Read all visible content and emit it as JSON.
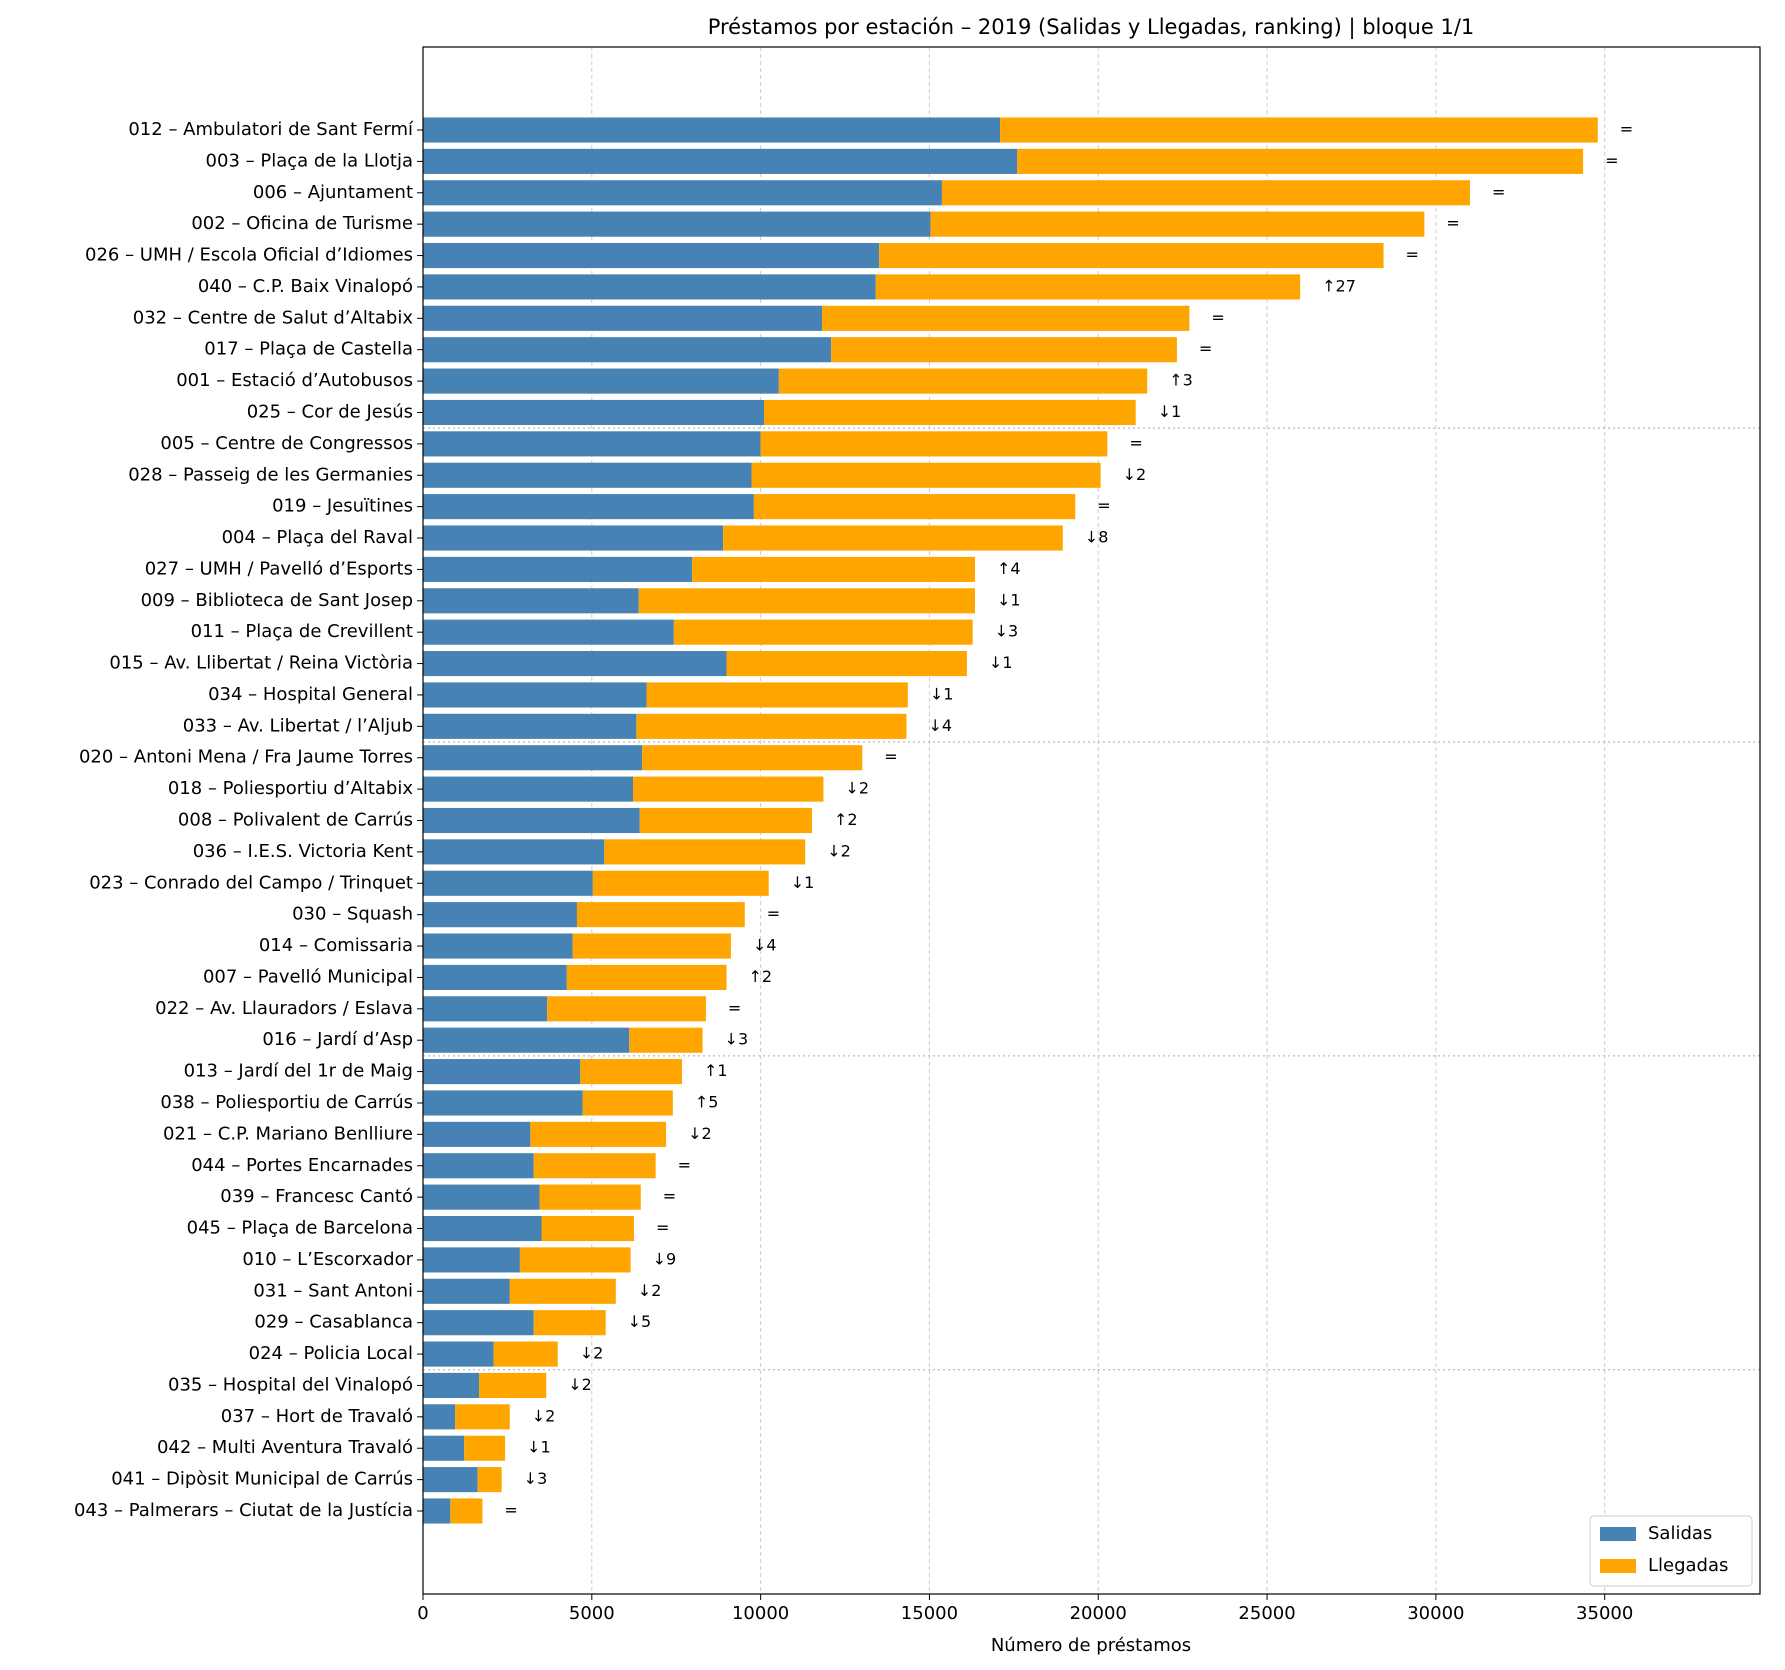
{
  "chart_data": {
    "type": "stacked_barh",
    "title": "Préstamos por estación – 2019 (Salidas y Llegadas, ranking)  |  bloque 1/1",
    "x_label": "Número de préstamos",
    "categories": [
      "012 – Ambulatori de Sant Fermí",
      "003 – Plaça de la Llotja",
      "006 – Ajuntament",
      "002 – Oficina de Turisme",
      "026 – UMH / Escola Oficial d’Idiomes",
      "040 – C.P. Baix Vinalopó",
      "032 – Centre de Salut d’Altabix",
      "017 – Plaça de Castella",
      "001 – Estació d’Autobusos",
      "025 – Cor de Jesús",
      "005 – Centre de Congressos",
      "028 – Passeig de les Germanies",
      "019 – Jesuïtines",
      "004 – Plaça del Raval",
      "027 – UMH / Pavelló d’Esports",
      "009 – Biblioteca de Sant Josep",
      "011 – Plaça de Crevillent",
      "015 – Av. Llibertat / Reina Victòria",
      "034 – Hospital General",
      "033 – Av. Libertat / l’Aljub",
      "020 – Antoni Mena / Fra Jaume Torres",
      "018 – Poliesportiu d’Altabix",
      "008 – Polivalent de Carrús",
      "036 – I.E.S. Victoria Kent",
      "023 – Conrado del Campo / Trinquet",
      "030 – Squash",
      "014 – Comissaria",
      "007 – Pavelló Municipal",
      "022 – Av. Llauradors / Eslava",
      "016 – Jardí d’Asp",
      "013 – Jardí del 1r de Maig",
      "038 – Poliesportiu de Carrús",
      "021 – C.P. Mariano Benlliure",
      "044 – Portes Encarnades",
      "039 – Francesc Cantó",
      "045 – Plaça de Barcelona",
      "010 – L’Escorxador",
      "031 – Sant Antoni",
      "029 – Casablanca",
      "024 – Policia Local",
      "035 – Hospital del Vinalopó",
      "037 – Hort de Travaló",
      "042 – Multi Aventura Travaló",
      "041 – Dipòsit Municipal de Carrús",
      "043 – Palmerars – Ciutat de la Justícia"
    ],
    "series": [
      {
        "name": "Salidas",
        "color": "#4682b4",
        "values": [
          17095,
          17600,
          15370,
          15030,
          13510,
          13410,
          11820,
          12090,
          10540,
          10100,
          10000,
          9730,
          9800,
          8890,
          7970,
          6390,
          7430,
          8990,
          6620,
          6320,
          6490,
          6220,
          6420,
          5370,
          5030,
          4560,
          4430,
          4260,
          3680,
          6110,
          4660,
          4730,
          3180,
          3280,
          3450,
          3510,
          2870,
          2570,
          3280,
          2090,
          1660,
          950,
          1220,
          1620,
          810
        ]
      },
      {
        "name": "Llegadas",
        "color": "#ffa500",
        "values": [
          17700,
          16760,
          15640,
          14630,
          14940,
          12570,
          10880,
          10240,
          10910,
          11010,
          10270,
          10340,
          9520,
          10060,
          8380,
          9960,
          8850,
          7120,
          7740,
          8000,
          6520,
          5640,
          5100,
          5950,
          5210,
          4970,
          4690,
          4730,
          4700,
          2170,
          3010,
          2670,
          4020,
          3610,
          3000,
          2740,
          3280,
          3140,
          2130,
          1900,
          1990,
          1620,
          1210,
          710,
          950
        ]
      }
    ],
    "rank_changes": [
      "=",
      "=",
      "=",
      "=",
      "=",
      "↑27",
      "=",
      "=",
      "↑3",
      "↓1",
      "=",
      "↓2",
      "=",
      "↓8",
      "↑4",
      "↓1",
      "↓3",
      "↓1",
      "↓1",
      "↓4",
      "=",
      "↓2",
      "↑2",
      "↓2",
      "↓1",
      "=",
      "↓4",
      "↑2",
      "=",
      "↓3",
      "↑1",
      "↑5",
      "↓2",
      "=",
      "=",
      "=",
      "↓9",
      "↓2",
      "↓5",
      "↓2",
      "↓2",
      "↓2",
      "↓1",
      "↓3",
      "="
    ],
    "xlim": [
      0,
      39600
    ],
    "xticks": [
      0,
      5000,
      10000,
      15000,
      20000,
      25000,
      30000,
      35000
    ],
    "grid": true,
    "legend": "lower right"
  }
}
